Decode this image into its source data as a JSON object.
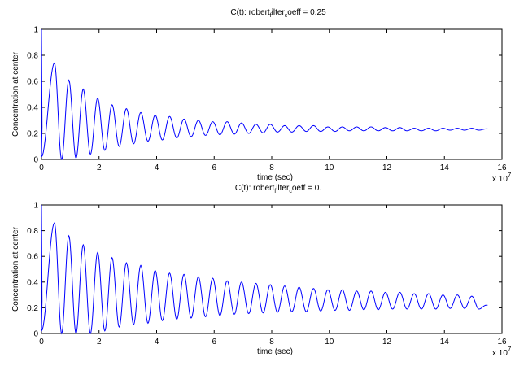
{
  "chart_data": [
    {
      "type": "line",
      "title_prefix": "C(t): robert",
      "title_sub1": "f",
      "title_mid": "ilter",
      "title_sub2": "c",
      "title_suffix": "oeff = 0.25",
      "xlabel": "time (sec)",
      "ylabel": "Concentration at center",
      "x_exponent_base": "x 10",
      "x_exponent_power": "7",
      "xlim": [
        0,
        16
      ],
      "ylim": [
        0,
        1
      ],
      "xticks": [
        "0",
        "2",
        "4",
        "6",
        "8",
        "10",
        "12",
        "14",
        "16"
      ],
      "yticks": [
        "0",
        "0.2",
        "0.4",
        "0.6",
        "0.8",
        "1"
      ],
      "x_end": 15.5,
      "series": [
        {
          "color": "#0000ff",
          "period": 0.5,
          "first_peak_time": 0.45,
          "peaks": [
            [
              0.45,
              0.74
            ],
            [
              0.95,
              0.61
            ],
            [
              1.45,
              0.54
            ],
            [
              1.95,
              0.47
            ],
            [
              2.45,
              0.42
            ],
            [
              2.95,
              0.39
            ],
            [
              3.45,
              0.36
            ],
            [
              3.95,
              0.34
            ],
            [
              4.45,
              0.33
            ],
            [
              4.95,
              0.31
            ],
            [
              5.45,
              0.3
            ],
            [
              5.95,
              0.29
            ],
            [
              6.45,
              0.29
            ],
            [
              6.95,
              0.28
            ],
            [
              7.45,
              0.27
            ],
            [
              7.95,
              0.27
            ],
            [
              8.45,
              0.26
            ],
            [
              8.95,
              0.26
            ],
            [
              9.45,
              0.26
            ],
            [
              9.95,
              0.25
            ],
            [
              10.45,
              0.25
            ],
            [
              10.95,
              0.25
            ],
            [
              11.45,
              0.25
            ],
            [
              11.95,
              0.245
            ],
            [
              12.45,
              0.245
            ],
            [
              12.95,
              0.24
            ],
            [
              13.45,
              0.24
            ],
            [
              13.95,
              0.24
            ],
            [
              14.45,
              0.24
            ],
            [
              14.95,
              0.24
            ],
            [
              15.45,
              0.235
            ]
          ],
          "troughs": [
            [
              0.0,
              0.02
            ],
            [
              0.7,
              0.0
            ],
            [
              1.2,
              0.01
            ],
            [
              1.7,
              0.04
            ],
            [
              2.2,
              0.07
            ],
            [
              2.7,
              0.1
            ],
            [
              3.2,
              0.12
            ],
            [
              3.7,
              0.14
            ],
            [
              4.2,
              0.15
            ],
            [
              4.7,
              0.165
            ],
            [
              5.2,
              0.175
            ],
            [
              5.7,
              0.185
            ],
            [
              6.2,
              0.19
            ],
            [
              6.7,
              0.195
            ],
            [
              7.2,
              0.2
            ],
            [
              7.7,
              0.205
            ],
            [
              8.2,
              0.21
            ],
            [
              8.7,
              0.21
            ],
            [
              9.2,
              0.215
            ],
            [
              9.7,
              0.215
            ],
            [
              10.2,
              0.215
            ],
            [
              10.7,
              0.22
            ],
            [
              11.2,
              0.22
            ],
            [
              11.7,
              0.22
            ],
            [
              12.2,
              0.22
            ],
            [
              12.7,
              0.22
            ],
            [
              13.2,
              0.22
            ],
            [
              13.7,
              0.22
            ],
            [
              14.2,
              0.225
            ],
            [
              14.7,
              0.225
            ],
            [
              15.2,
              0.225
            ]
          ]
        }
      ]
    },
    {
      "type": "line",
      "title_prefix": "C(t): robert",
      "title_sub1": "f",
      "title_mid": "ilter",
      "title_sub2": "c",
      "title_suffix": "oeff = 0.",
      "xlabel": "time (sec)",
      "ylabel": "Concentration at center",
      "x_exponent_base": "x 10",
      "x_exponent_power": "7",
      "xlim": [
        0,
        16
      ],
      "ylim": [
        0,
        1
      ],
      "xticks": [
        "0",
        "2",
        "4",
        "6",
        "8",
        "10",
        "12",
        "14",
        "16"
      ],
      "yticks": [
        "0",
        "0.2",
        "0.4",
        "0.6",
        "0.8",
        "1"
      ],
      "x_end": 15.5,
      "series": [
        {
          "color": "#0000ff",
          "period": 0.5,
          "first_peak_time": 0.45,
          "peaks": [
            [
              0.45,
              0.86
            ],
            [
              0.95,
              0.76
            ],
            [
              1.45,
              0.69
            ],
            [
              1.95,
              0.63
            ],
            [
              2.45,
              0.59
            ],
            [
              2.95,
              0.55
            ],
            [
              3.45,
              0.53
            ],
            [
              3.95,
              0.49
            ],
            [
              4.45,
              0.47
            ],
            [
              4.95,
              0.46
            ],
            [
              5.45,
              0.44
            ],
            [
              5.95,
              0.43
            ],
            [
              6.45,
              0.41
            ],
            [
              6.95,
              0.4
            ],
            [
              7.45,
              0.39
            ],
            [
              7.95,
              0.38
            ],
            [
              8.45,
              0.37
            ],
            [
              8.95,
              0.36
            ],
            [
              9.45,
              0.35
            ],
            [
              9.95,
              0.34
            ],
            [
              10.45,
              0.34
            ],
            [
              10.95,
              0.33
            ],
            [
              11.45,
              0.33
            ],
            [
              11.95,
              0.32
            ],
            [
              12.45,
              0.32
            ],
            [
              12.95,
              0.31
            ],
            [
              13.45,
              0.31
            ],
            [
              13.95,
              0.3
            ],
            [
              14.45,
              0.3
            ],
            [
              14.95,
              0.29
            ],
            [
              15.45,
              0.22
            ]
          ],
          "troughs": [
            [
              0.0,
              0.02
            ],
            [
              0.7,
              0.0
            ],
            [
              1.2,
              0.0
            ],
            [
              1.7,
              0.0
            ],
            [
              2.2,
              0.02
            ],
            [
              2.7,
              0.05
            ],
            [
              3.2,
              0.07
            ],
            [
              3.7,
              0.08
            ],
            [
              4.2,
              0.1
            ],
            [
              4.7,
              0.11
            ],
            [
              5.2,
              0.12
            ],
            [
              5.7,
              0.13
            ],
            [
              6.2,
              0.14
            ],
            [
              6.7,
              0.15
            ],
            [
              7.2,
              0.155
            ],
            [
              7.7,
              0.16
            ],
            [
              8.2,
              0.165
            ],
            [
              8.7,
              0.17
            ],
            [
              9.2,
              0.17
            ],
            [
              9.7,
              0.175
            ],
            [
              10.2,
              0.18
            ],
            [
              10.7,
              0.18
            ],
            [
              11.2,
              0.185
            ],
            [
              11.7,
              0.185
            ],
            [
              12.2,
              0.19
            ],
            [
              12.7,
              0.19
            ],
            [
              13.2,
              0.19
            ],
            [
              13.7,
              0.19
            ],
            [
              14.2,
              0.195
            ],
            [
              14.7,
              0.195
            ],
            [
              15.2,
              0.19
            ]
          ]
        }
      ]
    }
  ]
}
